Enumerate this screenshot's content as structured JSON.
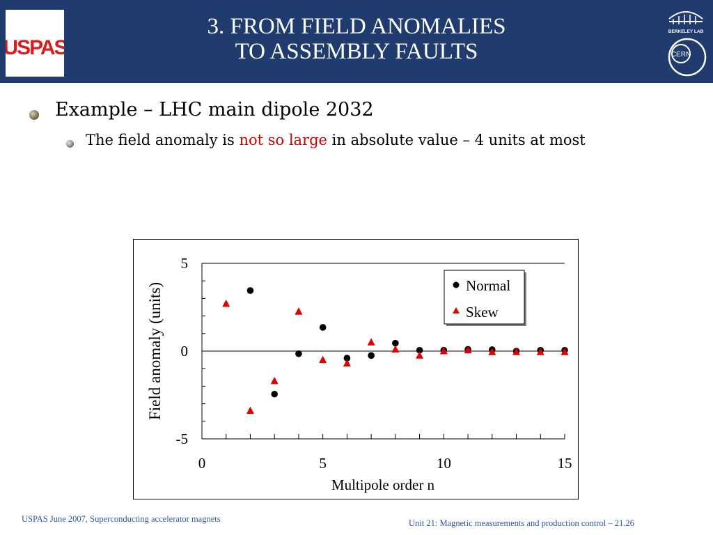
{
  "header": {
    "title_line1": "3. FROM FIELD ANOMALIES",
    "title_line2": "TO ASSEMBLY FAULTS",
    "logo_left_text": "USPAS",
    "logo_right_top_text": "BERKELEY LAB",
    "logo_right_bottom_text": "CERN"
  },
  "content": {
    "bullet1": "Example – LHC main dipole 2032",
    "bullet2_pre": "The field anomaly is ",
    "bullet2_emph": "not so large",
    "bullet2_post": " in absolute value – 4 units at most",
    "emph_color": "#d40000"
  },
  "chart_data": {
    "type": "scatter",
    "xlabel": "Multipole order n",
    "ylabel": "Field anomaly (units)",
    "xlim": [
      0,
      15
    ],
    "ylim": [
      -5,
      5
    ],
    "xticks": [
      "0",
      "5",
      "10",
      "15"
    ],
    "yticks": [
      "5",
      "0",
      "-5"
    ],
    "legend_position": "top-right",
    "series": [
      {
        "name": "Normal",
        "marker": "circle",
        "color": "#000000",
        "points": [
          [
            2,
            3.45
          ],
          [
            3,
            -2.45
          ],
          [
            4,
            -0.15
          ],
          [
            5,
            1.35
          ],
          [
            6,
            -0.4
          ],
          [
            7,
            -0.25
          ],
          [
            8,
            0.45
          ],
          [
            9,
            0.05
          ],
          [
            10,
            0.05
          ],
          [
            11,
            0.1
          ],
          [
            12,
            0.08
          ],
          [
            13,
            0.0
          ],
          [
            14,
            0.05
          ],
          [
            15,
            0.05
          ]
        ]
      },
      {
        "name": "Skew",
        "marker": "triangle",
        "color": "#e00000",
        "points": [
          [
            1,
            2.7
          ],
          [
            2,
            -3.4
          ],
          [
            3,
            -1.7
          ],
          [
            4,
            2.25
          ],
          [
            5,
            -0.5
          ],
          [
            6,
            -0.7
          ],
          [
            7,
            0.5
          ],
          [
            8,
            0.1
          ],
          [
            9,
            -0.25
          ],
          [
            10,
            0.0
          ],
          [
            11,
            0.05
          ],
          [
            12,
            -0.05
          ],
          [
            13,
            -0.05
          ],
          [
            14,
            -0.05
          ],
          [
            15,
            -0.05
          ]
        ]
      }
    ]
  },
  "footer": {
    "left": "USPAS June  2007,  Superconducting accelerator magnets",
    "right": "Unit 21: Magnetic measurements and production control  – 21.26",
    "color": "#2f55a8"
  }
}
